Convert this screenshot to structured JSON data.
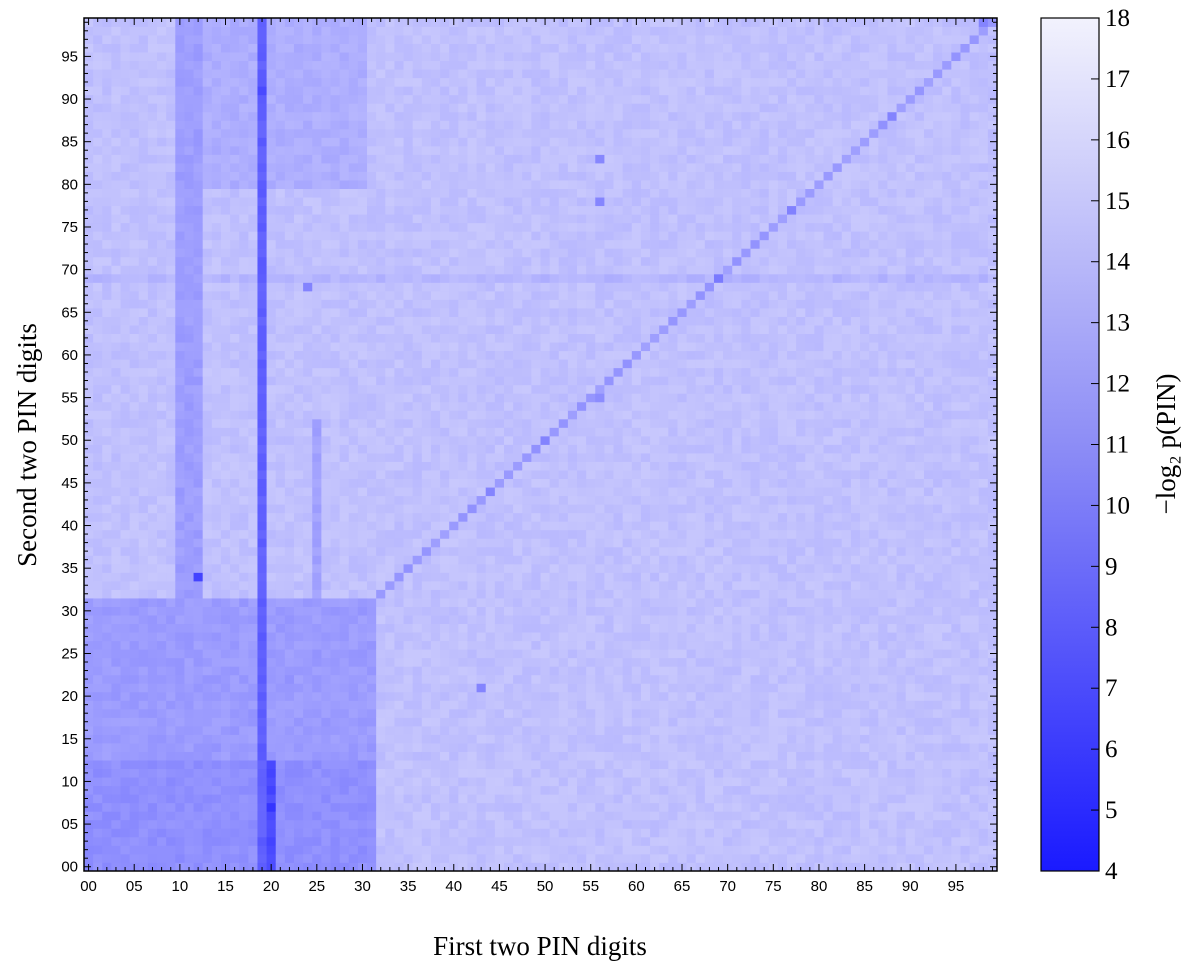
{
  "chart_data": {
    "type": "heatmap",
    "xlabel": "First two PIN digits",
    "ylabel": "Second two PIN digits",
    "x_range": [
      0,
      99
    ],
    "y_range": [
      0,
      99
    ],
    "x_tick_labels": [
      "00",
      "05",
      "10",
      "15",
      "20",
      "25",
      "30",
      "35",
      "40",
      "45",
      "50",
      "55",
      "60",
      "65",
      "70",
      "75",
      "80",
      "85",
      "90",
      "95"
    ],
    "y_tick_labels": [
      "00",
      "05",
      "10",
      "15",
      "20",
      "25",
      "30",
      "35",
      "40",
      "45",
      "50",
      "55",
      "60",
      "65",
      "70",
      "75",
      "80",
      "85",
      "90",
      "95"
    ],
    "colorbar": {
      "label": "−log₂ p(PIN)",
      "min": 4,
      "max": 18,
      "ticks": [
        "4",
        "5",
        "6",
        "7",
        "8",
        "9",
        "10",
        "11",
        "12",
        "13",
        "14",
        "15",
        "16",
        "17",
        "18"
      ],
      "color_low": "#1a1aff",
      "color_high": "#f2f2fd"
    },
    "baseline_value": 14.8,
    "regions": [
      {
        "x": [
          0,
          31
        ],
        "y": [
          0,
          12
        ],
        "value": 11.6
      },
      {
        "x": [
          0,
          31
        ],
        "y": [
          13,
          31
        ],
        "value": 12.4
      },
      {
        "x": [
          10,
          12
        ],
        "y": [
          0,
          99
        ],
        "value": 12.5
      },
      {
        "x": [
          10,
          30
        ],
        "y": [
          80,
          99
        ],
        "value": 13.6
      },
      {
        "x": [
          19,
          19
        ],
        "y": [
          0,
          99
        ],
        "value": 8.5
      },
      {
        "x": [
          20,
          20
        ],
        "y": [
          0,
          12
        ],
        "value": 7.0
      },
      {
        "x": [
          25,
          25
        ],
        "y": [
          14,
          52
        ],
        "value": 12.8
      },
      {
        "x": [
          0,
          99
        ],
        "y": [
          69,
          69
        ],
        "value": 14.0
      }
    ],
    "diagonal_value": 12.2,
    "hotspots": [
      {
        "x": 12,
        "y": 34,
        "value": 7.0
      },
      {
        "x": 20,
        "y": 7,
        "value": 6.0
      },
      {
        "x": 19,
        "y": 91,
        "value": 7.5
      },
      {
        "x": 43,
        "y": 21,
        "value": 10.5
      },
      {
        "x": 50,
        "y": 50,
        "value": 10.5
      },
      {
        "x": 69,
        "y": 69,
        "value": 10.5
      },
      {
        "x": 88,
        "y": 88,
        "value": 11.0
      },
      {
        "x": 77,
        "y": 77,
        "value": 11.0
      },
      {
        "x": 44,
        "y": 44,
        "value": 11.0
      },
      {
        "x": 56,
        "y": 78,
        "value": 11.0
      },
      {
        "x": 56,
        "y": 83,
        "value": 11.0
      },
      {
        "x": 24,
        "y": 68,
        "value": 11.0
      },
      {
        "x": 56,
        "y": 55,
        "value": 11.5
      },
      {
        "x": 98,
        "y": 99,
        "value": 11.0
      }
    ]
  }
}
